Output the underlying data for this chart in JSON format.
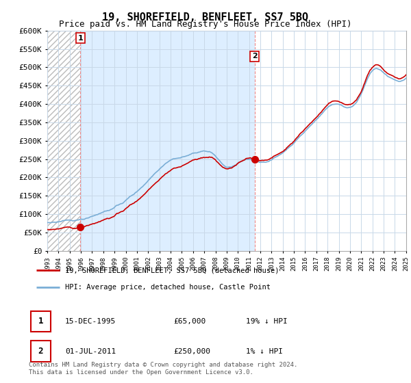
{
  "title": "19, SHOREFIELD, BENFLEET, SS7 5BQ",
  "subtitle": "Price paid vs. HM Land Registry's House Price Index (HPI)",
  "ylim": [
    0,
    600000
  ],
  "yticks": [
    0,
    50000,
    100000,
    150000,
    200000,
    250000,
    300000,
    350000,
    400000,
    450000,
    500000,
    550000,
    600000
  ],
  "ytick_labels": [
    "£0",
    "£50K",
    "£100K",
    "£150K",
    "£200K",
    "£250K",
    "£300K",
    "£350K",
    "£400K",
    "£450K",
    "£500K",
    "£550K",
    "£600K"
  ],
  "sale1_date_num": 1995.96,
  "sale1_price": 65000,
  "sale1_label": "1",
  "sale2_date_num": 2011.5,
  "sale2_price": 250000,
  "sale2_label": "2",
  "hpi_color": "#7aaed6",
  "price_color": "#cc0000",
  "dot_color": "#cc0000",
  "vline_color": "#ee8888",
  "shade_color": "#ddeeff",
  "hatch_bg_color": "#f0f0f0",
  "legend_line1": "19, SHOREFIELD, BENFLEET, SS7 5BQ (detached house)",
  "legend_line2": "HPI: Average price, detached house, Castle Point",
  "table_row1": [
    "1",
    "15-DEC-1995",
    "£65,000",
    "19% ↓ HPI"
  ],
  "table_row2": [
    "2",
    "01-JUL-2011",
    "£250,000",
    "1% ↓ HPI"
  ],
  "footnote": "Contains HM Land Registry data © Crown copyright and database right 2024.\nThis data is licensed under the Open Government Licence v3.0.",
  "title_fontsize": 11,
  "subtitle_fontsize": 9,
  "tick_fontsize": 8,
  "xstart": 1993,
  "xend": 2025
}
